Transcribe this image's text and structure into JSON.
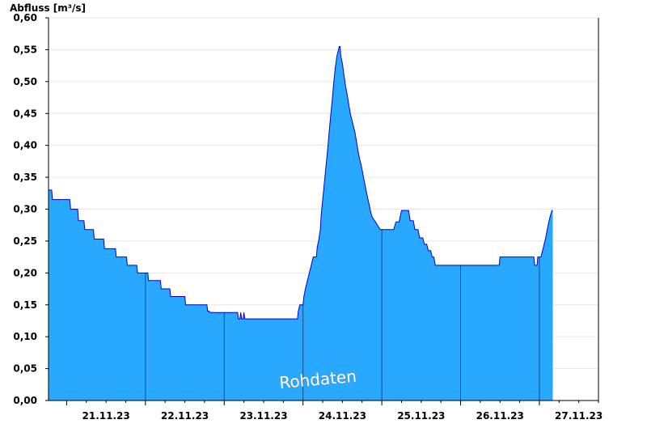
{
  "chart_data": {
    "type": "area",
    "ylabel": "Abfluss [m³/s]",
    "watermark": "Rohdaten",
    "ylim": [
      0,
      0.6
    ],
    "yticks": [
      "0,00",
      "0,05",
      "0,10",
      "0,15",
      "0,20",
      "0,25",
      "0,30",
      "0,35",
      "0,40",
      "0,45",
      "0,50",
      "0,55",
      "0,60"
    ],
    "xticks": [
      "21.11.23",
      "22.11.23",
      "23.11.23",
      "24.11.23",
      "25.11.23",
      "26.11.23",
      "27.11.23"
    ],
    "x_unit": "days from 20.11.23 00:00",
    "xlim": [
      0.77,
      7.75
    ],
    "grid": true,
    "colors": {
      "fill": "#29a8ff",
      "line": "#0000cc",
      "grid": "#e6e6e6",
      "daydiv": "#1a4a8a"
    },
    "series": [
      {
        "values": [
          [
            0.77,
            0.33
          ],
          [
            0.81,
            0.33
          ],
          [
            0.82,
            0.315
          ],
          [
            1.04,
            0.315
          ],
          [
            1.05,
            0.3
          ],
          [
            1.14,
            0.3
          ],
          [
            1.15,
            0.282
          ],
          [
            1.22,
            0.282
          ],
          [
            1.23,
            0.268
          ],
          [
            1.34,
            0.268
          ],
          [
            1.35,
            0.253
          ],
          [
            1.47,
            0.253
          ],
          [
            1.48,
            0.238
          ],
          [
            1.62,
            0.238
          ],
          [
            1.63,
            0.225
          ],
          [
            1.76,
            0.225
          ],
          [
            1.77,
            0.212
          ],
          [
            1.89,
            0.212
          ],
          [
            1.9,
            0.2
          ],
          [
            2.03,
            0.2
          ],
          [
            2.04,
            0.188
          ],
          [
            2.19,
            0.188
          ],
          [
            2.2,
            0.175
          ],
          [
            2.31,
            0.175
          ],
          [
            2.32,
            0.163
          ],
          [
            2.5,
            0.163
          ],
          [
            2.51,
            0.15
          ],
          [
            2.78,
            0.15
          ],
          [
            2.79,
            0.14
          ],
          [
            2.81,
            0.14
          ],
          [
            2.82,
            0.138
          ],
          [
            3.17,
            0.138
          ],
          [
            3.18,
            0.128
          ],
          [
            3.2,
            0.128
          ],
          [
            3.21,
            0.138
          ],
          [
            3.22,
            0.128
          ],
          [
            3.24,
            0.128
          ],
          [
            3.25,
            0.138
          ],
          [
            3.26,
            0.128
          ],
          [
            3.93,
            0.128
          ],
          [
            3.94,
            0.14
          ],
          [
            3.96,
            0.15
          ],
          [
            4.0,
            0.15
          ],
          [
            4.01,
            0.162
          ],
          [
            4.03,
            0.175
          ],
          [
            4.05,
            0.185
          ],
          [
            4.07,
            0.195
          ],
          [
            4.09,
            0.205
          ],
          [
            4.11,
            0.215
          ],
          [
            4.13,
            0.225
          ],
          [
            4.17,
            0.225
          ],
          [
            4.18,
            0.24
          ],
          [
            4.2,
            0.252
          ],
          [
            4.22,
            0.268
          ],
          [
            4.23,
            0.29
          ],
          [
            4.25,
            0.315
          ],
          [
            4.27,
            0.34
          ],
          [
            4.29,
            0.365
          ],
          [
            4.31,
            0.39
          ],
          [
            4.33,
            0.418
          ],
          [
            4.35,
            0.445
          ],
          [
            4.37,
            0.47
          ],
          [
            4.39,
            0.498
          ],
          [
            4.41,
            0.522
          ],
          [
            4.43,
            0.54
          ],
          [
            4.46,
            0.555
          ],
          [
            4.47,
            0.555
          ],
          [
            4.48,
            0.54
          ],
          [
            4.5,
            0.528
          ],
          [
            4.52,
            0.51
          ],
          [
            4.54,
            0.493
          ],
          [
            4.56,
            0.48
          ],
          [
            4.58,
            0.465
          ],
          [
            4.6,
            0.45
          ],
          [
            4.63,
            0.435
          ],
          [
            4.66,
            0.42
          ],
          [
            4.68,
            0.405
          ],
          [
            4.7,
            0.39
          ],
          [
            4.72,
            0.378
          ],
          [
            4.74,
            0.368
          ],
          [
            4.76,
            0.355
          ],
          [
            4.78,
            0.342
          ],
          [
            4.8,
            0.33
          ],
          [
            4.82,
            0.318
          ],
          [
            4.84,
            0.307
          ],
          [
            4.86,
            0.295
          ],
          [
            4.88,
            0.287
          ],
          [
            4.92,
            0.28
          ],
          [
            4.98,
            0.268
          ],
          [
            5.15,
            0.268
          ],
          [
            5.18,
            0.28
          ],
          [
            5.22,
            0.28
          ],
          [
            5.25,
            0.298
          ],
          [
            5.34,
            0.298
          ],
          [
            5.36,
            0.282
          ],
          [
            5.4,
            0.282
          ],
          [
            5.42,
            0.268
          ],
          [
            5.46,
            0.268
          ],
          [
            5.48,
            0.255
          ],
          [
            5.52,
            0.255
          ],
          [
            5.54,
            0.245
          ],
          [
            5.57,
            0.245
          ],
          [
            5.59,
            0.235
          ],
          [
            5.62,
            0.235
          ],
          [
            5.64,
            0.225
          ],
          [
            5.66,
            0.225
          ],
          [
            5.68,
            0.212
          ],
          [
            5.72,
            0.212
          ],
          [
            5.73,
            0.212
          ],
          [
            6.49,
            0.212
          ],
          [
            6.5,
            0.225
          ],
          [
            6.93,
            0.225
          ],
          [
            6.94,
            0.212
          ],
          [
            6.97,
            0.212
          ],
          [
            6.98,
            0.225
          ],
          [
            7.02,
            0.225
          ],
          [
            7.04,
            0.235
          ],
          [
            7.06,
            0.245
          ],
          [
            7.08,
            0.255
          ],
          [
            7.1,
            0.268
          ],
          [
            7.12,
            0.28
          ],
          [
            7.14,
            0.29
          ],
          [
            7.16,
            0.298
          ],
          [
            7.17,
            0.298
          ]
        ]
      }
    ]
  }
}
